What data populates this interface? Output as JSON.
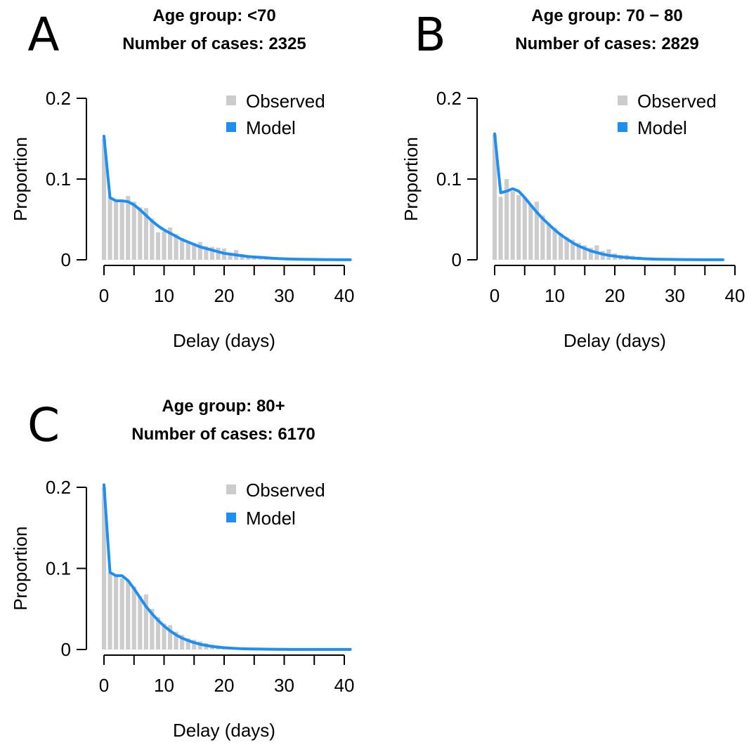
{
  "figure": {
    "colors": {
      "observed": "#cccccc",
      "model": "#1f8ef1",
      "axis": "#000000"
    }
  },
  "chart_data": [
    {
      "panel": "A",
      "type": "bar",
      "title_line1": "Age group: <70",
      "title_line2": "Number of cases: 2325",
      "xlabel": "Delay (days)",
      "ylabel": "Proportion",
      "xlim": [
        0,
        41
      ],
      "ylim": [
        0,
        0.2
      ],
      "xticks": [
        "0",
        "10",
        "20",
        "30",
        "40"
      ],
      "yticks": [
        "0",
        "0.1",
        "0.2"
      ],
      "legend": [
        "Observed",
        "Model"
      ],
      "legend_position": "top-right",
      "grid": false,
      "x": [
        0,
        1,
        2,
        3,
        4,
        5,
        6,
        7,
        8,
        9,
        10,
        11,
        12,
        13,
        14,
        15,
        16,
        17,
        18,
        19,
        20,
        21,
        22,
        23,
        24,
        25,
        26,
        27,
        28,
        29,
        30,
        31,
        32,
        33,
        34,
        35,
        36,
        37,
        38,
        39,
        40,
        41
      ],
      "observed": [
        0.15,
        0.078,
        0.072,
        0.073,
        0.079,
        0.072,
        0.065,
        0.064,
        0.051,
        0.034,
        0.035,
        0.04,
        0.032,
        0.027,
        0.023,
        0.02,
        0.022,
        0.017,
        0.016,
        0.015,
        0.014,
        0.009,
        0.012,
        0.007,
        0.005,
        0.005,
        0.004,
        0.004,
        0.003,
        0.002,
        0.002,
        0.001,
        0.002,
        0.001,
        0.001,
        0.001,
        0.0005,
        0.0005,
        0.0005,
        0.0005,
        0.0005,
        0.0005
      ],
      "model": [
        0.153,
        0.077,
        0.073,
        0.073,
        0.072,
        0.068,
        0.062,
        0.055,
        0.048,
        0.042,
        0.037,
        0.033,
        0.029,
        0.025,
        0.022,
        0.019,
        0.016,
        0.014,
        0.012,
        0.01,
        0.008,
        0.007,
        0.006,
        0.005,
        0.004,
        0.0035,
        0.003,
        0.0025,
        0.002,
        0.0015,
        0.0012,
        0.001,
        0.0008,
        0.0006,
        0.0005,
        0.0004,
        0.0003,
        0.0002,
        0.0002,
        0.0001,
        0.0001,
        0.0001
      ]
    },
    {
      "panel": "B",
      "type": "bar",
      "title_line1": "Age group: 70 − 80",
      "title_line2": "Number of cases: 2829",
      "xlabel": "Delay (days)",
      "ylabel": "Proportion",
      "xlim": [
        0,
        40
      ],
      "ylim": [
        0,
        0.2
      ],
      "xticks": [
        "0",
        "10",
        "20",
        "30",
        "40"
      ],
      "yticks": [
        "0",
        "0.1",
        "0.2"
      ],
      "legend": [
        "Observed",
        "Model"
      ],
      "legend_position": "top-right",
      "grid": false,
      "x": [
        0,
        1,
        2,
        3,
        4,
        5,
        6,
        7,
        8,
        9,
        10,
        11,
        12,
        13,
        14,
        15,
        16,
        17,
        18,
        19,
        20,
        21,
        22,
        23,
        24,
        25,
        26,
        27,
        28,
        29,
        30,
        31,
        32,
        33,
        34,
        35,
        36,
        37,
        38
      ],
      "observed": [
        0.155,
        0.078,
        0.1,
        0.085,
        0.08,
        0.078,
        0.068,
        0.072,
        0.055,
        0.045,
        0.04,
        0.033,
        0.028,
        0.025,
        0.021,
        0.018,
        0.015,
        0.018,
        0.011,
        0.013,
        0.008,
        0.006,
        0.006,
        0.005,
        0.004,
        0.003,
        0.003,
        0.002,
        0.002,
        0.002,
        0.001,
        0.001,
        0.001,
        0.001,
        0.0005,
        0.0005,
        0.0005,
        0.0005,
        0.0005
      ],
      "model": [
        0.156,
        0.083,
        0.085,
        0.088,
        0.085,
        0.077,
        0.068,
        0.059,
        0.051,
        0.044,
        0.037,
        0.031,
        0.026,
        0.021,
        0.017,
        0.014,
        0.011,
        0.009,
        0.007,
        0.0055,
        0.0045,
        0.0035,
        0.0028,
        0.0022,
        0.0017,
        0.0013,
        0.001,
        0.0008,
        0.0006,
        0.0005,
        0.0004,
        0.0003,
        0.0002,
        0.0002,
        0.0001,
        0.0001,
        0.0001,
        0.0001,
        0.0001
      ]
    },
    {
      "panel": "C",
      "type": "bar",
      "title_line1": "Age group: 80+",
      "title_line2": "Number of cases: 6170",
      "xlabel": "Delay (days)",
      "ylabel": "Proportion",
      "xlim": [
        0,
        41
      ],
      "ylim": [
        0,
        0.2
      ],
      "xticks": [
        "0",
        "10",
        "20",
        "30",
        "40"
      ],
      "yticks": [
        "0",
        "0.1",
        "0.2"
      ],
      "legend": [
        "Observed",
        "Model"
      ],
      "legend_position": "top-right",
      "grid": false,
      "x": [
        0,
        1,
        2,
        3,
        4,
        5,
        6,
        7,
        8,
        9,
        10,
        11,
        12,
        13,
        14,
        15,
        16,
        17,
        18,
        19,
        20,
        21,
        22,
        23,
        24,
        25,
        26,
        27,
        28,
        29,
        30,
        31,
        32,
        33,
        34,
        35,
        36,
        37,
        38,
        39,
        40,
        41
      ],
      "observed": [
        0.2,
        0.095,
        0.093,
        0.088,
        0.085,
        0.078,
        0.066,
        0.068,
        0.05,
        0.04,
        0.032,
        0.03,
        0.022,
        0.018,
        0.014,
        0.012,
        0.01,
        0.008,
        0.006,
        0.005,
        0.004,
        0.003,
        0.003,
        0.002,
        0.002,
        0.001,
        0.001,
        0.001,
        0.001,
        0.0005,
        0.0005,
        0.0005,
        0.0005,
        0.0005,
        0.0005,
        0.0005,
        0.0005,
        0.0005,
        0.0005,
        0.0005,
        0.0005,
        0.0005
      ],
      "model": [
        0.203,
        0.095,
        0.091,
        0.091,
        0.085,
        0.075,
        0.064,
        0.053,
        0.044,
        0.036,
        0.029,
        0.023,
        0.018,
        0.014,
        0.011,
        0.0085,
        0.0065,
        0.005,
        0.0038,
        0.0029,
        0.0022,
        0.0017,
        0.0013,
        0.001,
        0.0008,
        0.0006,
        0.0005,
        0.0004,
        0.0003,
        0.0002,
        0.0002,
        0.0001,
        0.0001,
        0.0001,
        0.0001,
        0.0001,
        0.0001,
        0.0001,
        0.0001,
        0.0001,
        0.0001,
        0.0001
      ]
    }
  ]
}
